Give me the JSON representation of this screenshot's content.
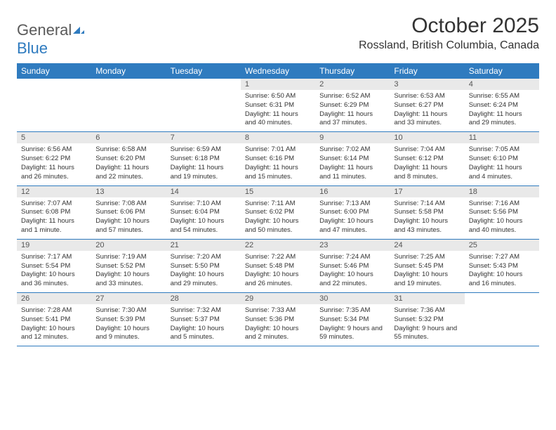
{
  "logo": {
    "text_general": "General",
    "text_blue": "Blue"
  },
  "title": "October 2025",
  "location": "Rossland, British Columbia, Canada",
  "colors": {
    "header_bar": "#2f7bbf",
    "daynum_bg": "#e9e9e9",
    "text": "#333333",
    "logo_gray": "#5a5a5a"
  },
  "daysOfWeek": [
    "Sunday",
    "Monday",
    "Tuesday",
    "Wednesday",
    "Thursday",
    "Friday",
    "Saturday"
  ],
  "weeks": [
    [
      {
        "empty": true
      },
      {
        "empty": true
      },
      {
        "empty": true
      },
      {
        "n": "1",
        "sunrise": "6:50 AM",
        "sunset": "6:31 PM",
        "daylight": "11 hours and 40 minutes."
      },
      {
        "n": "2",
        "sunrise": "6:52 AM",
        "sunset": "6:29 PM",
        "daylight": "11 hours and 37 minutes."
      },
      {
        "n": "3",
        "sunrise": "6:53 AM",
        "sunset": "6:27 PM",
        "daylight": "11 hours and 33 minutes."
      },
      {
        "n": "4",
        "sunrise": "6:55 AM",
        "sunset": "6:24 PM",
        "daylight": "11 hours and 29 minutes."
      }
    ],
    [
      {
        "n": "5",
        "sunrise": "6:56 AM",
        "sunset": "6:22 PM",
        "daylight": "11 hours and 26 minutes."
      },
      {
        "n": "6",
        "sunrise": "6:58 AM",
        "sunset": "6:20 PM",
        "daylight": "11 hours and 22 minutes."
      },
      {
        "n": "7",
        "sunrise": "6:59 AM",
        "sunset": "6:18 PM",
        "daylight": "11 hours and 19 minutes."
      },
      {
        "n": "8",
        "sunrise": "7:01 AM",
        "sunset": "6:16 PM",
        "daylight": "11 hours and 15 minutes."
      },
      {
        "n": "9",
        "sunrise": "7:02 AM",
        "sunset": "6:14 PM",
        "daylight": "11 hours and 11 minutes."
      },
      {
        "n": "10",
        "sunrise": "7:04 AM",
        "sunset": "6:12 PM",
        "daylight": "11 hours and 8 minutes."
      },
      {
        "n": "11",
        "sunrise": "7:05 AM",
        "sunset": "6:10 PM",
        "daylight": "11 hours and 4 minutes."
      }
    ],
    [
      {
        "n": "12",
        "sunrise": "7:07 AM",
        "sunset": "6:08 PM",
        "daylight": "11 hours and 1 minute."
      },
      {
        "n": "13",
        "sunrise": "7:08 AM",
        "sunset": "6:06 PM",
        "daylight": "10 hours and 57 minutes."
      },
      {
        "n": "14",
        "sunrise": "7:10 AM",
        "sunset": "6:04 PM",
        "daylight": "10 hours and 54 minutes."
      },
      {
        "n": "15",
        "sunrise": "7:11 AM",
        "sunset": "6:02 PM",
        "daylight": "10 hours and 50 minutes."
      },
      {
        "n": "16",
        "sunrise": "7:13 AM",
        "sunset": "6:00 PM",
        "daylight": "10 hours and 47 minutes."
      },
      {
        "n": "17",
        "sunrise": "7:14 AM",
        "sunset": "5:58 PM",
        "daylight": "10 hours and 43 minutes."
      },
      {
        "n": "18",
        "sunrise": "7:16 AM",
        "sunset": "5:56 PM",
        "daylight": "10 hours and 40 minutes."
      }
    ],
    [
      {
        "n": "19",
        "sunrise": "7:17 AM",
        "sunset": "5:54 PM",
        "daylight": "10 hours and 36 minutes."
      },
      {
        "n": "20",
        "sunrise": "7:19 AM",
        "sunset": "5:52 PM",
        "daylight": "10 hours and 33 minutes."
      },
      {
        "n": "21",
        "sunrise": "7:20 AM",
        "sunset": "5:50 PM",
        "daylight": "10 hours and 29 minutes."
      },
      {
        "n": "22",
        "sunrise": "7:22 AM",
        "sunset": "5:48 PM",
        "daylight": "10 hours and 26 minutes."
      },
      {
        "n": "23",
        "sunrise": "7:24 AM",
        "sunset": "5:46 PM",
        "daylight": "10 hours and 22 minutes."
      },
      {
        "n": "24",
        "sunrise": "7:25 AM",
        "sunset": "5:45 PM",
        "daylight": "10 hours and 19 minutes."
      },
      {
        "n": "25",
        "sunrise": "7:27 AM",
        "sunset": "5:43 PM",
        "daylight": "10 hours and 16 minutes."
      }
    ],
    [
      {
        "n": "26",
        "sunrise": "7:28 AM",
        "sunset": "5:41 PM",
        "daylight": "10 hours and 12 minutes."
      },
      {
        "n": "27",
        "sunrise": "7:30 AM",
        "sunset": "5:39 PM",
        "daylight": "10 hours and 9 minutes."
      },
      {
        "n": "28",
        "sunrise": "7:32 AM",
        "sunset": "5:37 PM",
        "daylight": "10 hours and 5 minutes."
      },
      {
        "n": "29",
        "sunrise": "7:33 AM",
        "sunset": "5:36 PM",
        "daylight": "10 hours and 2 minutes."
      },
      {
        "n": "30",
        "sunrise": "7:35 AM",
        "sunset": "5:34 PM",
        "daylight": "9 hours and 59 minutes."
      },
      {
        "n": "31",
        "sunrise": "7:36 AM",
        "sunset": "5:32 PM",
        "daylight": "9 hours and 55 minutes."
      },
      {
        "empty": true
      }
    ]
  ],
  "labels": {
    "sunrise_prefix": "Sunrise: ",
    "sunset_prefix": "Sunset: ",
    "daylight_prefix": "Daylight: "
  }
}
